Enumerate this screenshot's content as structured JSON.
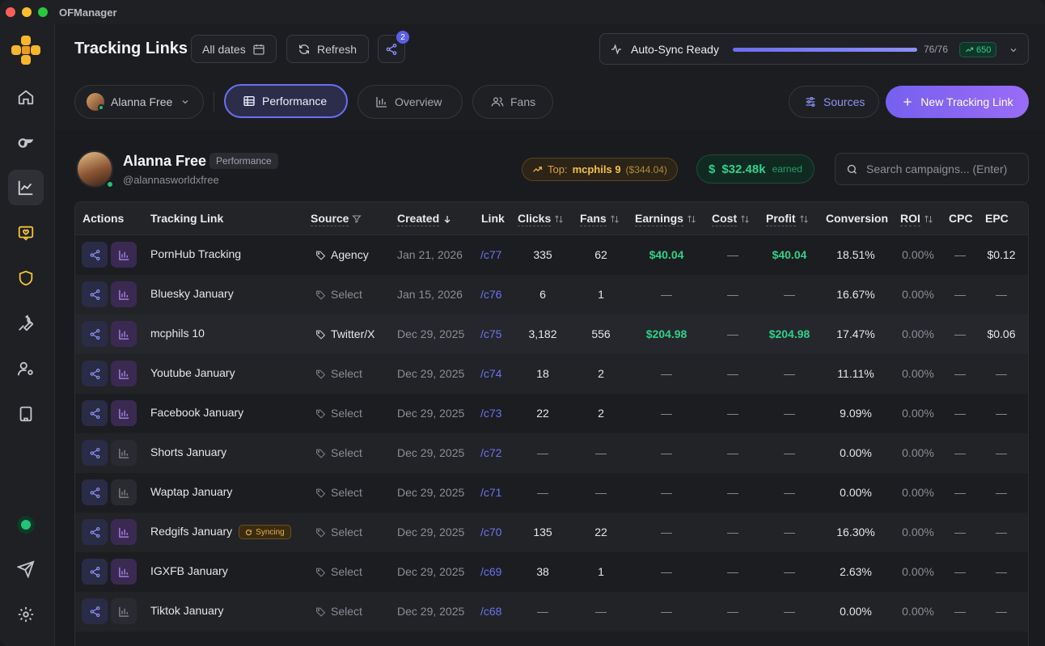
{
  "app": {
    "title": "OFManager"
  },
  "header": {
    "title": "Tracking Links",
    "dates_label": "All dates",
    "refresh_label": "Refresh",
    "share_badge": "2",
    "sync": {
      "label": "Auto-Sync Ready",
      "progress": 1.0,
      "count": "76/76",
      "delta": "650"
    }
  },
  "toolbar": {
    "account_name": "Alanna Free",
    "tabs": [
      {
        "label": "Performance"
      },
      {
        "label": "Overview"
      },
      {
        "label": "Fans"
      }
    ],
    "sources_label": "Sources",
    "new_link_label": "New Tracking Link"
  },
  "profile": {
    "name": "Alanna Free",
    "tag": "Performance",
    "handle": "@alannasworldxfree",
    "top_label": "Top:",
    "top_name": "mcphils 9",
    "top_value": "($344.04)",
    "earned_value": "$32.48k",
    "earned_label": "earned"
  },
  "search": {
    "placeholder": "Search campaigns... (Enter)"
  },
  "colors": {
    "accent": "#6b6ff0",
    "green": "#2fd08a",
    "amber": "#e8b04a"
  },
  "table": {
    "headers": {
      "actions": "Actions",
      "tracking_link": "Tracking Link",
      "source": "Source",
      "created": "Created",
      "link": "Link",
      "clicks": "Clicks",
      "fans": "Fans",
      "earnings": "Earnings",
      "cost": "Cost",
      "profit": "Profit",
      "conversion": "Conversion",
      "roi": "ROI",
      "cpc": "CPC",
      "epc": "EPC"
    },
    "syncing_label": "Syncing",
    "rows": [
      {
        "name": "PornHub Tracking",
        "source": "Agency",
        "created": "Jan 21, 2026",
        "link": "/c77",
        "clicks": "335",
        "fans": "62",
        "earnings": "$40.04",
        "cost": "—",
        "profit": "$40.04",
        "conversion": "18.51%",
        "roi": "0.00%",
        "cpc": "—",
        "epc": "$0.12"
      },
      {
        "name": "Bluesky January",
        "source": "Select",
        "created": "Jan 15, 2026",
        "link": "/c76",
        "clicks": "6",
        "fans": "1",
        "earnings": "—",
        "cost": "—",
        "profit": "—",
        "conversion": "16.67%",
        "roi": "0.00%",
        "cpc": "—",
        "epc": "—"
      },
      {
        "name": "mcphils 10",
        "source": "Twitter/X",
        "created": "Dec 29, 2025",
        "link": "/c75",
        "clicks": "3,182",
        "fans": "556",
        "earnings": "$204.98",
        "cost": "—",
        "profit": "$204.98",
        "conversion": "17.47%",
        "roi": "0.00%",
        "cpc": "—",
        "epc": "$0.06"
      },
      {
        "name": "Youtube January",
        "source": "Select",
        "created": "Dec 29, 2025",
        "link": "/c74",
        "clicks": "18",
        "fans": "2",
        "earnings": "—",
        "cost": "—",
        "profit": "—",
        "conversion": "11.11%",
        "roi": "0.00%",
        "cpc": "—",
        "epc": "—"
      },
      {
        "name": "Facebook January",
        "source": "Select",
        "created": "Dec 29, 2025",
        "link": "/c73",
        "clicks": "22",
        "fans": "2",
        "earnings": "—",
        "cost": "—",
        "profit": "—",
        "conversion": "9.09%",
        "roi": "0.00%",
        "cpc": "—",
        "epc": "—"
      },
      {
        "name": "Shorts January",
        "source": "Select",
        "created": "Dec 29, 2025",
        "link": "/c72",
        "clicks": "—",
        "fans": "—",
        "earnings": "—",
        "cost": "—",
        "profit": "—",
        "conversion": "0.00%",
        "roi": "0.00%",
        "cpc": "—",
        "epc": "—"
      },
      {
        "name": "Waptap January",
        "source": "Select",
        "created": "Dec 29, 2025",
        "link": "/c71",
        "clicks": "—",
        "fans": "—",
        "earnings": "—",
        "cost": "—",
        "profit": "—",
        "conversion": "0.00%",
        "roi": "0.00%",
        "cpc": "—",
        "epc": "—"
      },
      {
        "name": "Redgifs January",
        "source": "Select",
        "created": "Dec 29, 2025",
        "link": "/c70",
        "clicks": "135",
        "fans": "22",
        "earnings": "—",
        "cost": "—",
        "profit": "—",
        "conversion": "16.30%",
        "roi": "0.00%",
        "cpc": "—",
        "epc": "—"
      },
      {
        "name": "IGXFB January",
        "source": "Select",
        "created": "Dec 29, 2025",
        "link": "/c69",
        "clicks": "38",
        "fans": "1",
        "earnings": "—",
        "cost": "—",
        "profit": "—",
        "conversion": "2.63%",
        "roi": "0.00%",
        "cpc": "—",
        "epc": "—"
      },
      {
        "name": "Tiktok January",
        "source": "Select",
        "created": "Dec 29, 2025",
        "link": "/c68",
        "clicks": "—",
        "fans": "—",
        "earnings": "—",
        "cost": "—",
        "profit": "—",
        "conversion": "0.00%",
        "roi": "0.00%",
        "cpc": "—",
        "epc": "—"
      }
    ]
  }
}
